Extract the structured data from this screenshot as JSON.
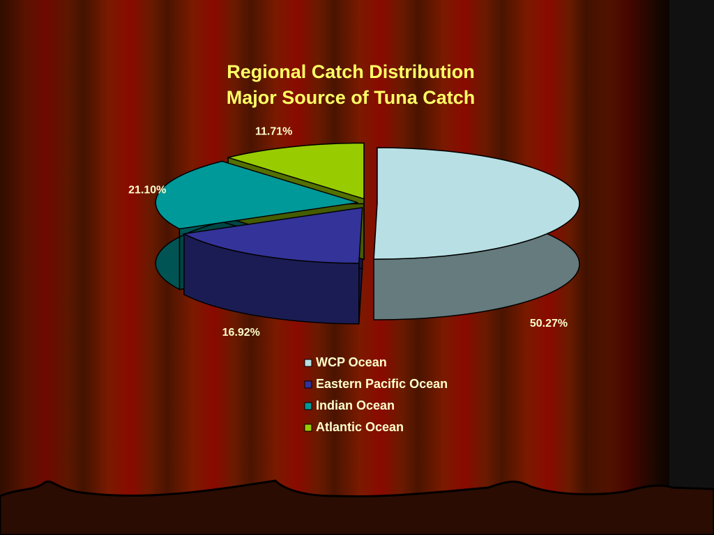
{
  "chart_data": {
    "type": "pie3d",
    "title": "Regional Catch Distribution",
    "subtitle": "Major Source of Tuna Catch",
    "categories": [
      "WCP Ocean",
      "Eastern Pacific Ocean",
      "Indian Ocean",
      "Atlantic Ocean"
    ],
    "values": [
      50.27,
      16.92,
      21.1,
      11.71
    ],
    "value_labels": [
      "50.27%",
      "16.92%",
      "21.10%",
      "11.71%"
    ],
    "colors": [
      "#b8e0e4",
      "#333399",
      "#009999",
      "#99cc00"
    ],
    "legend": "bottom"
  }
}
